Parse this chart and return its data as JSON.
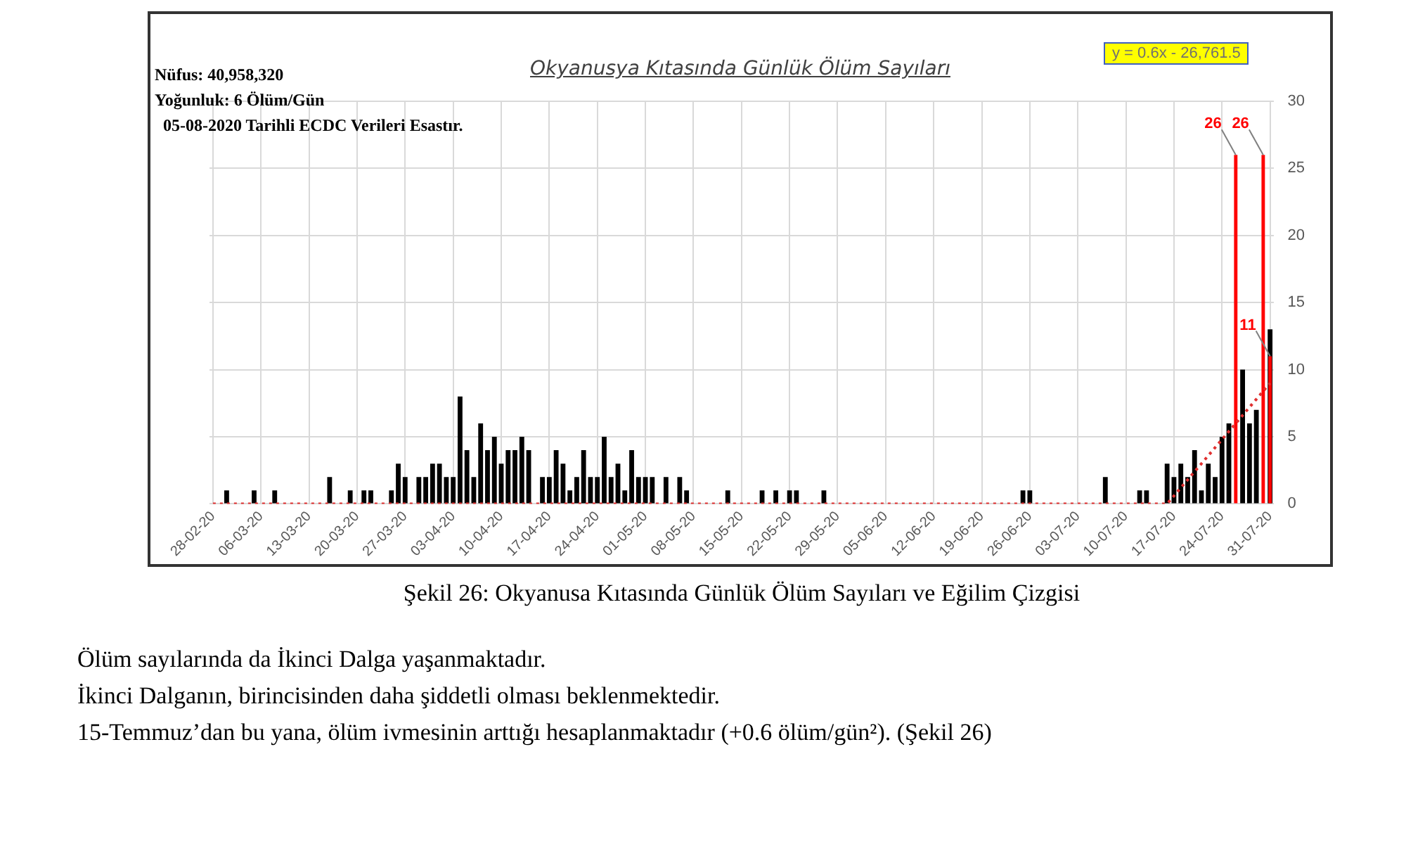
{
  "chart_data": {
    "type": "bar",
    "title": "Okyanusya Kıtasında Günlük Ölüm Sayıları",
    "annotations": [
      "Nüfus: 40,958,320",
      "Yoğunluk: 6 Ölüm/Gün",
      "05-08-2020 Tarihli ECDC Verileri Esastır.",
      "y = 0.6x - 26,761.5",
      "Şekil 26: Okyanusa Kıtasında Günlük Ölüm Sayıları ve Eğilim Çizgisi",
      "Ölüm sayılarında da İkinci Dalga yaşanmaktadır.",
      "İkinci Dalganın, birincisinden daha şiddetli olması beklenmektedir.",
      "15-Temmuz’dan bu yana, ölüm ivmesinin arttığı hesaplanmaktadır (+0.6 ölüm/gün²). (Şekil 26)"
    ],
    "categories": [
      "28-02-20",
      null,
      null,
      null,
      null,
      null,
      null,
      "06-03-20",
      null,
      null,
      null,
      null,
      null,
      null,
      "13-03-20",
      null,
      null,
      null,
      null,
      null,
      null,
      "20-03-20",
      null,
      null,
      null,
      null,
      null,
      null,
      "27-03-20",
      null,
      null,
      null,
      null,
      null,
      null,
      "03-04-20",
      null,
      null,
      null,
      null,
      null,
      null,
      "10-04-20",
      null,
      null,
      null,
      null,
      null,
      null,
      "17-04-20",
      null,
      null,
      null,
      null,
      null,
      null,
      "24-04-20",
      null,
      null,
      null,
      null,
      null,
      null,
      "01-05-20",
      null,
      null,
      null,
      null,
      null,
      null,
      "08-05-20",
      null,
      null,
      null,
      null,
      null,
      null,
      "15-05-20",
      null,
      null,
      null,
      null,
      null,
      null,
      "22-05-20",
      null,
      null,
      null,
      null,
      null,
      null,
      "29-05-20",
      null,
      null,
      null,
      null,
      null,
      null,
      "05-06-20",
      null,
      null,
      null,
      null,
      null,
      null,
      "12-06-20",
      null,
      null,
      null,
      null,
      null,
      null,
      "19-06-20",
      null,
      null,
      null,
      null,
      null,
      null,
      "26-06-20",
      null,
      null,
      null,
      null,
      null,
      null,
      "03-07-20",
      null,
      null,
      null,
      null,
      null,
      null,
      "10-07-20",
      null,
      null,
      null,
      null,
      null,
      null,
      "17-07-20",
      null,
      null,
      null,
      null,
      null,
      null,
      "24-07-20",
      null,
      null,
      null,
      null,
      null,
      null,
      "31-07-20"
    ],
    "series": [
      {
        "color": "#000000",
        "values": [
          0,
          0,
          1,
          0,
          0,
          0,
          1,
          0,
          0,
          1,
          0,
          0,
          0,
          0,
          0,
          0,
          0,
          2,
          0,
          0,
          1,
          0,
          1,
          1,
          0,
          0,
          1,
          3,
          2,
          0,
          2,
          2,
          3,
          3,
          2,
          2,
          8,
          4,
          2,
          6,
          4,
          5,
          3,
          4,
          4,
          5,
          4,
          0,
          2,
          2,
          4,
          3,
          1,
          2,
          4,
          2,
          2,
          5,
          2,
          3,
          1,
          4,
          2,
          2,
          2,
          0,
          2,
          0,
          2,
          1,
          0,
          0,
          0,
          0,
          0,
          1,
          0,
          0,
          0,
          0,
          1,
          0,
          1,
          0,
          1,
          1,
          0,
          0,
          0,
          1,
          0,
          0,
          0,
          0,
          0,
          0,
          0,
          0,
          0,
          0,
          0,
          0,
          0,
          0,
          0,
          0,
          0,
          0,
          0,
          0,
          0,
          0,
          0,
          0,
          0,
          0,
          0,
          0,
          1,
          1,
          0,
          0,
          0,
          0,
          0,
          0,
          0,
          0,
          0,
          0,
          2,
          0,
          0,
          0,
          0,
          1,
          1,
          0,
          0,
          3,
          2,
          3,
          2,
          4,
          1,
          3,
          2,
          5,
          6,
          null,
          10,
          6,
          7,
          null,
          13
        ]
      },
      {
        "color": "#ff0000",
        "values": [
          null,
          null,
          null,
          null,
          null,
          null,
          null,
          null,
          null,
          null,
          null,
          null,
          null,
          null,
          null,
          null,
          null,
          null,
          null,
          null,
          null,
          null,
          null,
          null,
          null,
          null,
          null,
          null,
          null,
          null,
          null,
          null,
          null,
          null,
          null,
          null,
          null,
          null,
          null,
          null,
          null,
          null,
          null,
          null,
          null,
          null,
          null,
          null,
          null,
          null,
          null,
          null,
          null,
          null,
          null,
          null,
          null,
          null,
          null,
          null,
          null,
          null,
          null,
          null,
          null,
          null,
          null,
          null,
          null,
          null,
          null,
          null,
          null,
          null,
          null,
          null,
          null,
          null,
          null,
          null,
          null,
          null,
          null,
          null,
          null,
          null,
          null,
          null,
          null,
          null,
          null,
          null,
          null,
          null,
          null,
          null,
          null,
          null,
          null,
          null,
          null,
          null,
          null,
          null,
          null,
          null,
          null,
          null,
          null,
          null,
          null,
          null,
          null,
          null,
          null,
          null,
          null,
          null,
          null,
          null,
          null,
          null,
          null,
          null,
          null,
          null,
          null,
          null,
          null,
          null,
          null,
          null,
          null,
          null,
          null,
          null,
          null,
          null,
          null,
          null,
          null,
          null,
          null,
          null,
          null,
          null,
          null,
          null,
          null,
          26,
          null,
          null,
          null,
          26,
          11
        ],
        "value_labels": [
          null,
          null,
          null,
          null,
          null,
          null,
          null,
          null,
          null,
          null,
          null,
          null,
          null,
          null,
          null,
          null,
          null,
          null,
          null,
          null,
          null,
          null,
          null,
          null,
          null,
          null,
          null,
          null,
          null,
          null,
          null,
          null,
          null,
          null,
          null,
          null,
          null,
          null,
          null,
          null,
          null,
          null,
          null,
          null,
          null,
          null,
          null,
          null,
          null,
          null,
          null,
          null,
          null,
          null,
          null,
          null,
          null,
          null,
          null,
          null,
          null,
          null,
          null,
          null,
          null,
          null,
          null,
          null,
          null,
          null,
          null,
          null,
          null,
          null,
          null,
          null,
          null,
          null,
          null,
          null,
          null,
          null,
          null,
          null,
          null,
          null,
          null,
          null,
          null,
          null,
          null,
          null,
          null,
          null,
          null,
          null,
          null,
          null,
          null,
          null,
          null,
          null,
          null,
          null,
          null,
          null,
          null,
          null,
          null,
          null,
          null,
          null,
          null,
          null,
          null,
          null,
          null,
          null,
          null,
          null,
          null,
          null,
          null,
          null,
          null,
          null,
          null,
          null,
          null,
          null,
          null,
          null,
          null,
          null,
          null,
          null,
          null,
          null,
          null,
          null,
          null,
          null,
          null,
          null,
          null,
          null,
          null,
          null,
          null,
          "26",
          null,
          null,
          null,
          "26",
          "11"
        ]
      },
      {
        "type": "line",
        "color": "#e03030",
        "line_style": "dotted",
        "marker": "none",
        "values": [
          0,
          0,
          0,
          0,
          0,
          0,
          0,
          0,
          0,
          0,
          0,
          0,
          0,
          0,
          0,
          0,
          0,
          0,
          0,
          0,
          0,
          0,
          0,
          0,
          0,
          0,
          0,
          0,
          0,
          0,
          0,
          0,
          0,
          0,
          0,
          0,
          0,
          0,
          0,
          0,
          0,
          0,
          0,
          0,
          0,
          0,
          0,
          0,
          0,
          0,
          0,
          0,
          0,
          0,
          0,
          0,
          0,
          0,
          0,
          0,
          0,
          0,
          0,
          0,
          0,
          0,
          0,
          0,
          0,
          0,
          0,
          0,
          0,
          0,
          0,
          0,
          0,
          0,
          0,
          0,
          0,
          0,
          0,
          0,
          0,
          0,
          0,
          0,
          0,
          0,
          0,
          0,
          0,
          0,
          0,
          0,
          0,
          0,
          0,
          0,
          0,
          0,
          0,
          0,
          0,
          0,
          0,
          0,
          0,
          0,
          0,
          0,
          0,
          0,
          0,
          0,
          0,
          0,
          0,
          0,
          0,
          0,
          0,
          0,
          0,
          0,
          0,
          0,
          0,
          0,
          0,
          0,
          0,
          0,
          0,
          0,
          0,
          0,
          0,
          0,
          0.6,
          1.2,
          1.8,
          2.4,
          3,
          3.6,
          4.2,
          4.8,
          5.4,
          6,
          6.6,
          7.2,
          7.8,
          8.4,
          9
        ]
      }
    ],
    "ylim": [
      0,
      30
    ],
    "yticks": [
      0,
      5,
      10,
      15,
      20,
      25,
      30
    ],
    "grid": true
  }
}
